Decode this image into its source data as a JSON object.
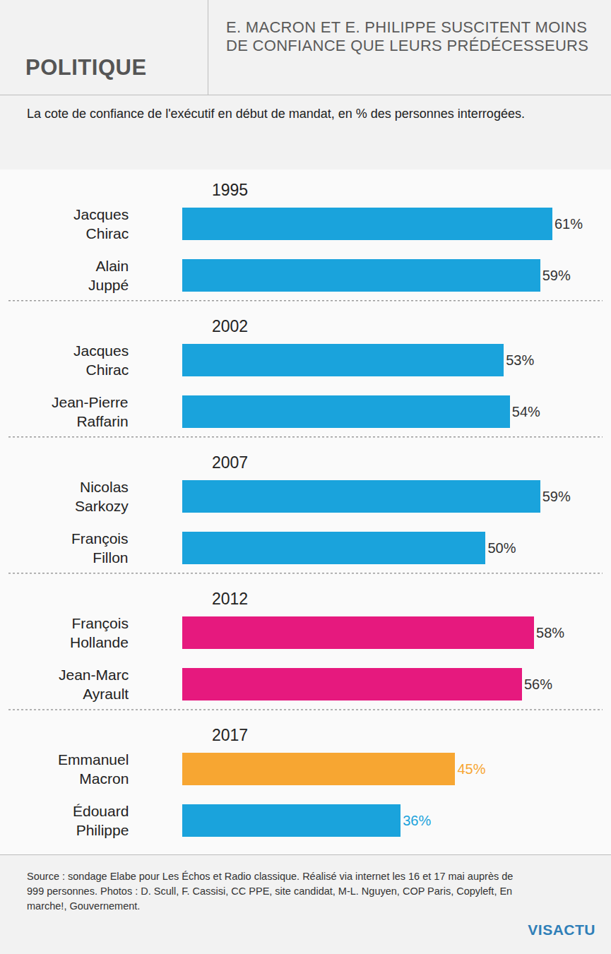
{
  "header": {
    "section": "POLITIQUE",
    "title": "E. MACRON ET E. PHILIPPE SUSCITENT MOINS DE CONFIANCE QUE LEURS PRÉDÉCESSEURS"
  },
  "chart_data": {
    "type": "bar",
    "orientation": "horizontal",
    "subtitle": "La cote de confiance de l'exécutif en début de mandat, en % des personnes interrogées.",
    "data_labels": true,
    "tick_labels": false,
    "grid": false,
    "xlim": [
      0,
      68
    ],
    "series": [
      {
        "name": "1995",
        "categories": [
          "Jacques Chirac",
          "Alain Juppé"
        ],
        "values": [
          61,
          59
        ],
        "value_labels": [
          "61%",
          "59%"
        ],
        "colors": [
          "#1aa3dc",
          "#1aa3dc"
        ]
      },
      {
        "name": "2002",
        "categories": [
          "Jacques Chirac",
          "Jean-Pierre Raffarin"
        ],
        "values": [
          53,
          54
        ],
        "value_labels": [
          "53%",
          "54%"
        ],
        "colors": [
          "#1aa3dc",
          "#1aa3dc"
        ]
      },
      {
        "name": "2007",
        "categories": [
          "Nicolas Sarkozy",
          "François Fillon"
        ],
        "values": [
          59,
          50
        ],
        "value_labels": [
          "59%",
          "50%"
        ],
        "colors": [
          "#1aa3dc",
          "#1aa3dc"
        ]
      },
      {
        "name": "2012",
        "categories": [
          "François Hollande",
          "Jean-Marc Ayrault"
        ],
        "values": [
          58,
          56
        ],
        "value_labels": [
          "58%",
          "56%"
        ],
        "colors": [
          "#e6197e",
          "#e6197e"
        ]
      },
      {
        "name": "2017",
        "categories": [
          "Emmanuel Macron",
          "Édouard Philippe"
        ],
        "values": [
          45,
          36
        ],
        "value_labels": [
          "45%",
          "36%"
        ],
        "colors": [
          "#f7a632",
          "#1aa3dc"
        ]
      }
    ]
  },
  "footer": {
    "source": "Source : sondage Elabe pour Les Échos et Radio classique. Réalisé via internet les 16 et 17 mai auprès de 999 personnes. Photos : D. Scull, F. Cassisi, CC PPE, site candidat, M-L. Nguyen, COP Paris, Copyleft, En marche!, Gouvernement.",
    "logo": "VISACTU"
  }
}
